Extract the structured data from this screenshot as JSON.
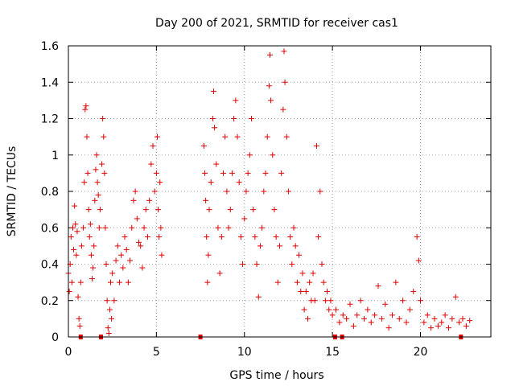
{
  "chart_data": {
    "type": "scatter",
    "title": "Day 200 of 2021, SRMTID for receiver cas1",
    "xlabel": "GPS time / hours",
    "ylabel": "SRMTID / TECUs",
    "xlim": [
      0,
      24
    ],
    "ylim": [
      0,
      1.6
    ],
    "x_ticks": [
      0,
      5,
      10,
      15,
      20
    ],
    "x_tick_labels": [
      "0",
      "5",
      "10",
      "15",
      "20"
    ],
    "y_ticks": [
      0,
      0.2,
      0.4,
      0.6,
      0.8,
      1.0,
      1.2,
      1.4,
      1.6
    ],
    "y_tick_labels": [
      "0",
      "0.2",
      "0.4",
      "0.6",
      "0.8",
      "1",
      "1.2",
      "1.4",
      "1.6"
    ],
    "grid": true,
    "marker": "+",
    "color": "#e00000",
    "gap_markers_x": [
      0.7,
      1.85,
      7.5,
      15.15,
      15.55,
      22.3
    ],
    "series": [
      {
        "name": "SRMTID",
        "points": [
          [
            0.0,
            0.35
          ],
          [
            0.05,
            0.25
          ],
          [
            0.1,
            0.4
          ],
          [
            0.15,
            0.55
          ],
          [
            0.2,
            0.3
          ],
          [
            0.25,
            0.6
          ],
          [
            0.3,
            0.48
          ],
          [
            0.35,
            0.72
          ],
          [
            0.4,
            0.62
          ],
          [
            0.45,
            0.45
          ],
          [
            0.5,
            0.58
          ],
          [
            0.55,
            0.22
          ],
          [
            0.6,
            0.1
          ],
          [
            0.65,
            0.06
          ],
          [
            0.7,
            0.3
          ],
          [
            0.75,
            0.5
          ],
          [
            0.85,
            0.6
          ],
          [
            0.9,
            0.85
          ],
          [
            0.95,
            1.25
          ],
          [
            1.0,
            1.27
          ],
          [
            1.05,
            1.1
          ],
          [
            1.1,
            0.9
          ],
          [
            1.15,
            0.7
          ],
          [
            1.2,
            0.55
          ],
          [
            1.25,
            0.62
          ],
          [
            1.3,
            0.45
          ],
          [
            1.35,
            0.32
          ],
          [
            1.4,
            0.38
          ],
          [
            1.45,
            0.5
          ],
          [
            1.5,
            0.75
          ],
          [
            1.55,
            0.92
          ],
          [
            1.6,
            1.0
          ],
          [
            1.65,
            0.85
          ],
          [
            1.7,
            0.78
          ],
          [
            1.75,
            0.6
          ],
          [
            1.8,
            0.7
          ],
          [
            1.9,
            0.95
          ],
          [
            1.95,
            1.2
          ],
          [
            2.0,
            1.1
          ],
          [
            2.05,
            0.9
          ],
          [
            2.1,
            0.6
          ],
          [
            2.15,
            0.4
          ],
          [
            2.2,
            0.2
          ],
          [
            2.25,
            0.05
          ],
          [
            2.3,
            0.02
          ],
          [
            2.35,
            0.15
          ],
          [
            2.4,
            0.3
          ],
          [
            2.45,
            0.1
          ],
          [
            2.5,
            0.35
          ],
          [
            2.6,
            0.2
          ],
          [
            2.7,
            0.42
          ],
          [
            2.8,
            0.5
          ],
          [
            2.9,
            0.3
          ],
          [
            3.0,
            0.45
          ],
          [
            3.1,
            0.38
          ],
          [
            3.2,
            0.55
          ],
          [
            3.3,
            0.48
          ],
          [
            3.4,
            0.3
          ],
          [
            3.5,
            0.42
          ],
          [
            3.6,
            0.6
          ],
          [
            3.7,
            0.75
          ],
          [
            3.8,
            0.8
          ],
          [
            3.9,
            0.65
          ],
          [
            4.0,
            0.52
          ],
          [
            4.1,
            0.5
          ],
          [
            4.2,
            0.38
          ],
          [
            4.3,
            0.6
          ],
          [
            4.4,
            0.7
          ],
          [
            4.5,
            0.55
          ],
          [
            4.6,
            0.75
          ],
          [
            4.7,
            0.95
          ],
          [
            4.8,
            1.05
          ],
          [
            4.9,
            0.8
          ],
          [
            5.0,
            0.9
          ],
          [
            5.05,
            1.1
          ],
          [
            5.1,
            0.7
          ],
          [
            5.15,
            0.55
          ],
          [
            5.2,
            0.85
          ],
          [
            5.25,
            0.6
          ],
          [
            5.3,
            0.45
          ],
          [
            7.7,
            1.05
          ],
          [
            7.75,
            0.9
          ],
          [
            7.8,
            0.75
          ],
          [
            7.85,
            0.55
          ],
          [
            7.9,
            0.3
          ],
          [
            7.95,
            0.45
          ],
          [
            8.0,
            0.7
          ],
          [
            8.1,
            0.85
          ],
          [
            8.2,
            1.2
          ],
          [
            8.25,
            1.35
          ],
          [
            8.3,
            1.15
          ],
          [
            8.4,
            0.95
          ],
          [
            8.5,
            0.6
          ],
          [
            8.6,
            0.35
          ],
          [
            8.7,
            0.55
          ],
          [
            8.8,
            0.9
          ],
          [
            8.9,
            1.1
          ],
          [
            9.0,
            0.8
          ],
          [
            9.1,
            0.6
          ],
          [
            9.2,
            0.7
          ],
          [
            9.3,
            0.9
          ],
          [
            9.4,
            1.2
          ],
          [
            9.5,
            1.3
          ],
          [
            9.6,
            1.1
          ],
          [
            9.7,
            0.85
          ],
          [
            9.8,
            0.55
          ],
          [
            9.9,
            0.4
          ],
          [
            10.0,
            0.65
          ],
          [
            10.1,
            0.8
          ],
          [
            10.2,
            0.9
          ],
          [
            10.3,
            1.0
          ],
          [
            10.4,
            1.2
          ],
          [
            10.5,
            0.7
          ],
          [
            10.6,
            0.55
          ],
          [
            10.7,
            0.4
          ],
          [
            10.8,
            0.22
          ],
          [
            10.9,
            0.5
          ],
          [
            11.0,
            0.6
          ],
          [
            11.1,
            0.8
          ],
          [
            11.2,
            0.9
          ],
          [
            11.3,
            1.1
          ],
          [
            11.4,
            1.38
          ],
          [
            11.45,
            1.55
          ],
          [
            11.5,
            1.3
          ],
          [
            11.6,
            1.0
          ],
          [
            11.7,
            0.7
          ],
          [
            11.8,
            0.55
          ],
          [
            11.9,
            0.3
          ],
          [
            12.0,
            0.5
          ],
          [
            12.1,
            0.9
          ],
          [
            12.2,
            1.25
          ],
          [
            12.25,
            1.57
          ],
          [
            12.3,
            1.4
          ],
          [
            12.4,
            1.1
          ],
          [
            12.5,
            0.8
          ],
          [
            12.6,
            0.55
          ],
          [
            12.7,
            0.4
          ],
          [
            12.8,
            0.6
          ],
          [
            12.9,
            0.5
          ],
          [
            13.0,
            0.3
          ],
          [
            13.1,
            0.45
          ],
          [
            13.2,
            0.25
          ],
          [
            13.3,
            0.35
          ],
          [
            13.4,
            0.15
          ],
          [
            13.5,
            0.25
          ],
          [
            13.6,
            0.1
          ],
          [
            13.7,
            0.3
          ],
          [
            13.8,
            0.2
          ],
          [
            13.9,
            0.35
          ],
          [
            14.0,
            0.2
          ],
          [
            14.1,
            1.05
          ],
          [
            14.2,
            0.55
          ],
          [
            14.3,
            0.8
          ],
          [
            14.4,
            0.4
          ],
          [
            14.5,
            0.3
          ],
          [
            14.6,
            0.2
          ],
          [
            14.7,
            0.25
          ],
          [
            14.8,
            0.15
          ],
          [
            14.9,
            0.2
          ],
          [
            15.0,
            0.12
          ],
          [
            15.2,
            0.15
          ],
          [
            15.4,
            0.08
          ],
          [
            15.6,
            0.12
          ],
          [
            15.8,
            0.1
          ],
          [
            16.0,
            0.18
          ],
          [
            16.2,
            0.06
          ],
          [
            16.4,
            0.12
          ],
          [
            16.6,
            0.2
          ],
          [
            16.8,
            0.1
          ],
          [
            17.0,
            0.15
          ],
          [
            17.2,
            0.08
          ],
          [
            17.4,
            0.12
          ],
          [
            17.6,
            0.28
          ],
          [
            17.8,
            0.1
          ],
          [
            18.0,
            0.18
          ],
          [
            18.2,
            0.05
          ],
          [
            18.4,
            0.12
          ],
          [
            18.6,
            0.3
          ],
          [
            18.8,
            0.1
          ],
          [
            19.0,
            0.2
          ],
          [
            19.2,
            0.08
          ],
          [
            19.4,
            0.15
          ],
          [
            19.6,
            0.25
          ],
          [
            19.8,
            0.55
          ],
          [
            19.9,
            0.42
          ],
          [
            20.0,
            0.2
          ],
          [
            20.2,
            0.08
          ],
          [
            20.4,
            0.12
          ],
          [
            20.6,
            0.05
          ],
          [
            20.8,
            0.1
          ],
          [
            21.0,
            0.06
          ],
          [
            21.2,
            0.08
          ],
          [
            21.4,
            0.12
          ],
          [
            21.6,
            0.05
          ],
          [
            21.8,
            0.1
          ],
          [
            22.0,
            0.22
          ],
          [
            22.2,
            0.08
          ],
          [
            22.4,
            0.1
          ],
          [
            22.6,
            0.06
          ],
          [
            22.8,
            0.09
          ]
        ]
      }
    ]
  }
}
